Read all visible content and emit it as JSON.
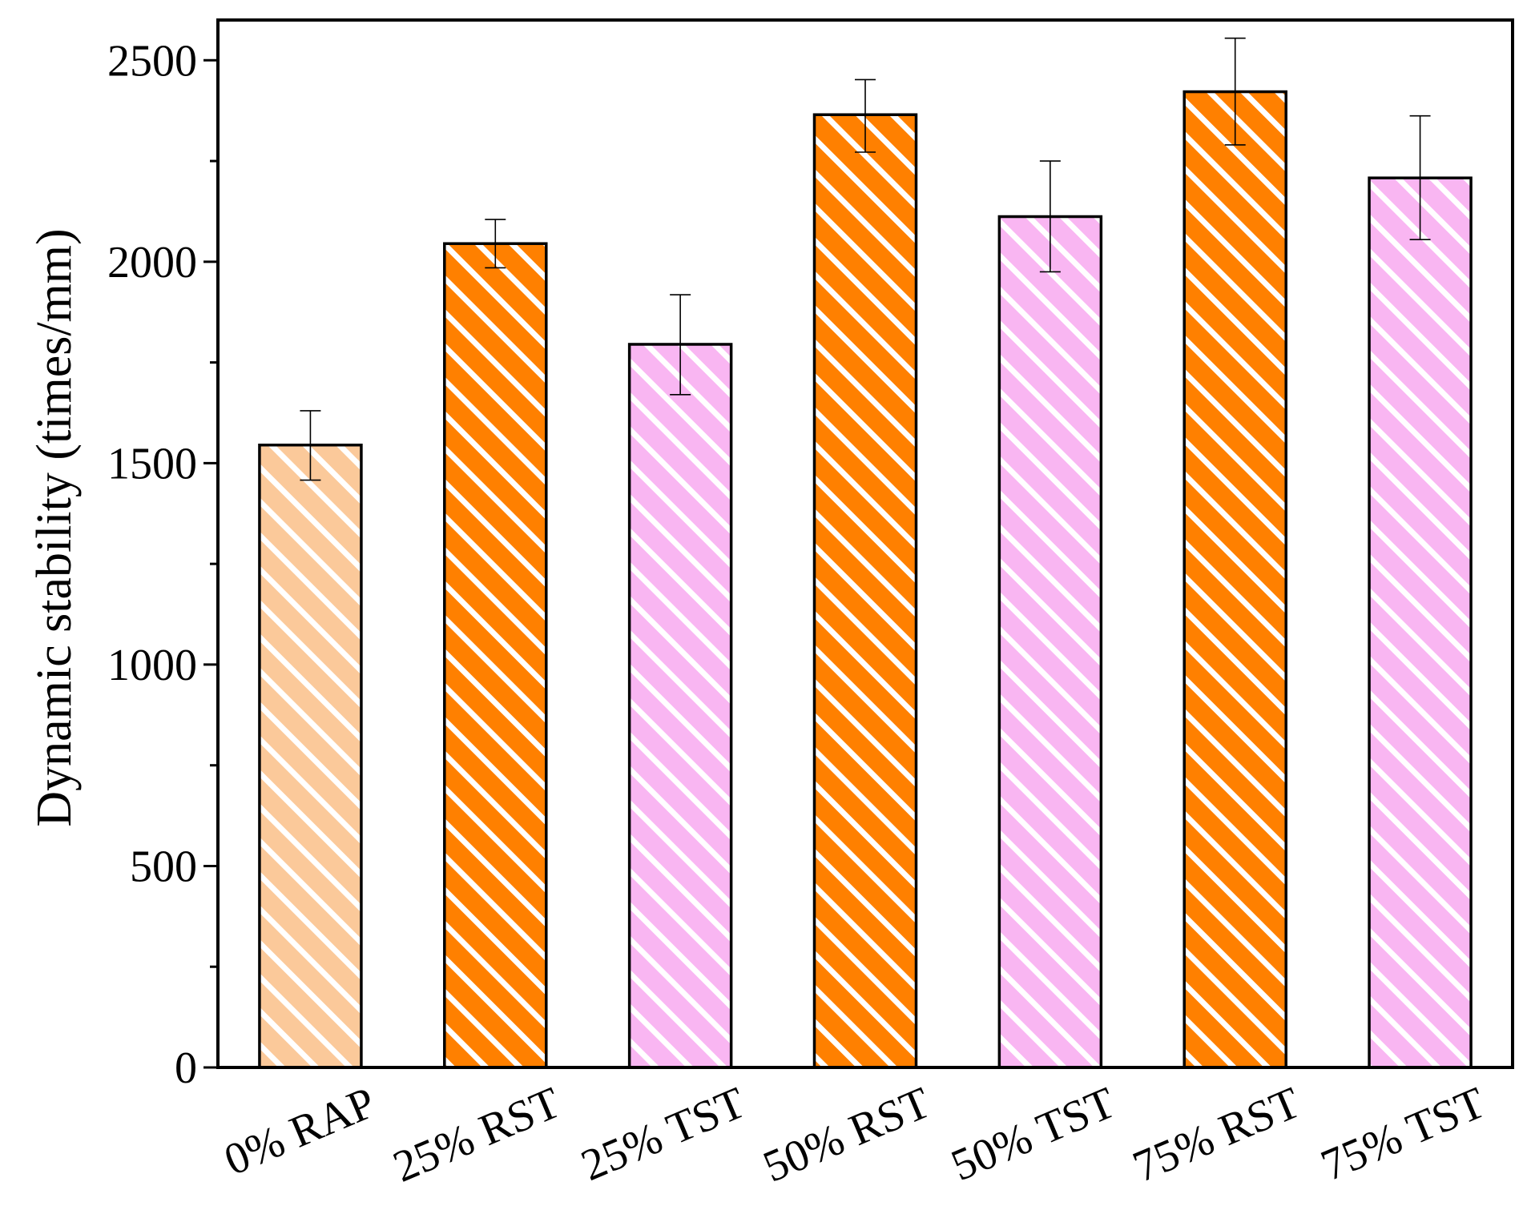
{
  "chart_data": {
    "type": "bar",
    "ylabel": "Dynamic stability (times/mm)",
    "xlabel": "",
    "ylim": [
      0,
      2600
    ],
    "yticks": [
      0,
      500,
      1000,
      1500,
      2000,
      2500
    ],
    "ytick_labels": [
      "0",
      "500",
      "1000",
      "1500",
      "2000",
      "2500"
    ],
    "categories": [
      "0% RAP",
      "25% RST",
      "25% TST",
      "50% RST",
      "50% TST",
      "75% RST",
      "75% TST"
    ],
    "values": [
      1545,
      2045,
      1795,
      2365,
      2112,
      2422,
      2208
    ],
    "error_low": [
      1458,
      1985,
      1670,
      2272,
      1975,
      2290,
      2055
    ],
    "error_high": [
      1630,
      2105,
      1918,
      2452,
      2250,
      2555,
      2362
    ],
    "fill_colors": [
      "#fbc99a",
      "#ff8000",
      "#f9b6f2",
      "#ff8000",
      "#f9b6f2",
      "#ff8000",
      "#f9b6f2"
    ],
    "pattern": "diagonal white stripes",
    "grid": false,
    "legend": "none"
  }
}
